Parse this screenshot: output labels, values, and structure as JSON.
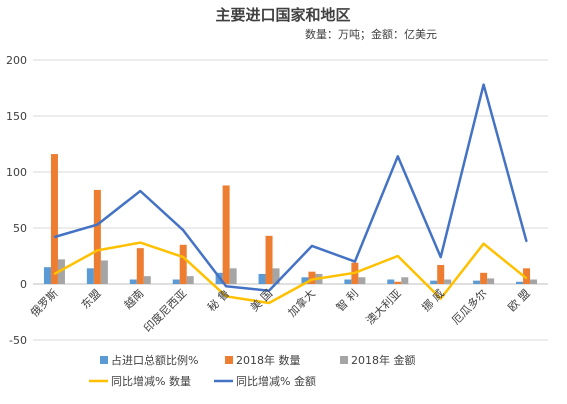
{
  "chart_data": {
    "type": "bar",
    "title": "主要进口国家和地区",
    "subtitle": "数量：万吨；金额：亿美元",
    "categories": [
      "俄罗斯",
      "东盟",
      "越南",
      "印度尼西亚",
      "秘 鲁",
      "美 国",
      "加拿大",
      "智 利",
      "澳大利亚",
      "挪 威",
      "厄瓜多尔",
      "欧 盟"
    ],
    "ylim": [
      -50,
      200
    ],
    "yticks": [
      -50,
      0,
      50,
      100,
      150,
      200
    ],
    "grid": true,
    "legend_position": "bottom",
    "series": [
      {
        "name": "占进口总额比例%",
        "kind": "bar",
        "color": "#5b9bd5",
        "values": [
          15,
          14,
          4,
          4,
          10,
          9,
          6,
          4,
          4,
          3,
          3,
          2
        ]
      },
      {
        "name": "2018年 数量",
        "kind": "bar",
        "color": "#ed7d31",
        "values": [
          116,
          84,
          32,
          35,
          88,
          43,
          11,
          19,
          2,
          17,
          10,
          14
        ]
      },
      {
        "name": "2018年 金额",
        "kind": "bar",
        "color": "#a5a5a5",
        "values": [
          22,
          21,
          7,
          7,
          14,
          14,
          9,
          6,
          6,
          4,
          5,
          4
        ]
      },
      {
        "name": "同比增减% 数量",
        "kind": "line",
        "color": "#ffc000",
        "values": [
          9,
          30,
          37,
          24,
          -11,
          -17,
          4,
          10,
          25,
          -13,
          36,
          5
        ]
      },
      {
        "name": "同比增减% 金额",
        "kind": "line",
        "color": "#4472c4",
        "values": [
          42,
          53,
          83,
          48,
          -2,
          -6,
          34,
          20,
          114,
          24,
          178,
          38
        ]
      }
    ]
  }
}
